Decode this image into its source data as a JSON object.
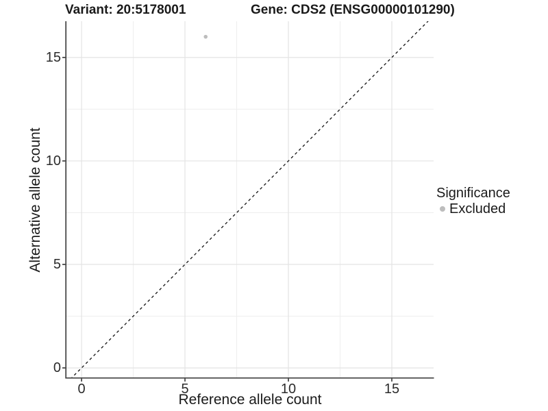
{
  "header": {
    "title_variant": "Variant: 20:5178001",
    "title_gene": "Gene: CDS2 (ENSG00000101290)"
  },
  "legend": {
    "title": "Significance",
    "items": [
      {
        "label": "Excluded",
        "color": "#bdbdbd"
      }
    ]
  },
  "chart_data": {
    "type": "scatter",
    "title": "Variant: 20:5178001   Gene: CDS2 (ENSG00000101290)",
    "xlabel": "Reference allele count",
    "ylabel": "Alternative allele count",
    "xlim": [
      -0.73,
      17.02
    ],
    "ylim": [
      -0.46,
      16.75
    ],
    "x_ticks": [
      0,
      5,
      10,
      15
    ],
    "y_ticks": [
      0,
      5,
      10,
      15
    ],
    "x_minor_ticks": [
      2.5,
      7.5,
      12.5
    ],
    "y_minor_ticks": [
      2.5,
      7.5,
      12.5
    ],
    "grid": true,
    "legend_position": "right",
    "series": [
      {
        "name": "Excluded",
        "color": "#bdbdbd",
        "points": [
          [
            6,
            16
          ]
        ],
        "point_radius": 2.8
      }
    ],
    "reference_line": {
      "slope": 1,
      "intercept": 0,
      "style": "dashed",
      "color": "#111111"
    }
  },
  "colors": {
    "background": "#ffffff",
    "grid_major": "#e3e3e3",
    "grid_minor": "#eeeeee",
    "axis_line": "#404040",
    "tick_mark": "#333333",
    "point": "#bdbdbd"
  }
}
